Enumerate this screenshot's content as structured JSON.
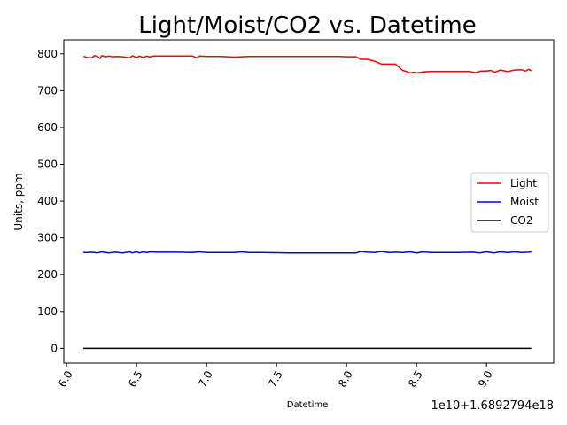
{
  "chart_data": {
    "type": "line",
    "title": "Light/Moist/CO2 vs. Datetime",
    "xlabel": "Datetime",
    "ylabel": "Units, ppm",
    "x_offset_label": "1e10+1.6892794e18",
    "xlim": [
      5.98,
      9.48
    ],
    "ylim": [
      -40,
      838
    ],
    "xticks": [
      6.0,
      6.5,
      7.0,
      7.5,
      8.0,
      8.5,
      9.0
    ],
    "xtick_labels": [
      "6.0",
      "6.5",
      "7.0",
      "7.5",
      "8.0",
      "8.5",
      "9.0"
    ],
    "yticks": [
      0,
      100,
      200,
      300,
      400,
      500,
      600,
      700,
      800
    ],
    "ytick_labels": [
      "0",
      "100",
      "200",
      "300",
      "400",
      "500",
      "600",
      "700",
      "800"
    ],
    "grid": false,
    "legend_position": "center-right",
    "series": [
      {
        "name": "Light",
        "color": "#ff0000",
        "x": [
          6.12,
          6.15,
          6.18,
          6.2,
          6.22,
          6.24,
          6.25,
          6.28,
          6.3,
          6.33,
          6.36,
          6.4,
          6.45,
          6.47,
          6.5,
          6.52,
          6.55,
          6.57,
          6.6,
          6.62,
          6.7,
          6.8,
          6.9,
          6.93,
          6.95,
          7.0,
          7.1,
          7.2,
          7.3,
          7.4,
          7.6,
          7.8,
          7.95,
          8.0,
          8.07,
          8.1,
          8.15,
          8.2,
          8.25,
          8.35,
          8.4,
          8.43,
          8.45,
          8.48,
          8.5,
          8.55,
          8.6,
          8.7,
          8.8,
          8.88,
          8.92,
          8.96,
          9.0,
          9.03,
          9.06,
          9.1,
          9.15,
          9.2,
          9.25,
          9.28,
          9.3,
          9.32
        ],
        "y": [
          793,
          790,
          789,
          795,
          793,
          787,
          795,
          792,
          794,
          792,
          793,
          792,
          789,
          795,
          790,
          794,
          790,
          794,
          791,
          794,
          794,
          794,
          794,
          789,
          794,
          793,
          793,
          791,
          793,
          793,
          793,
          793,
          793,
          792,
          792,
          785,
          785,
          780,
          772,
          772,
          755,
          752,
          748,
          750,
          748,
          751,
          752,
          752,
          752,
          752,
          749,
          753,
          753,
          755,
          750,
          756,
          752,
          756,
          757,
          753,
          758,
          754
        ]
      },
      {
        "name": "Moist",
        "color": "#0000ff",
        "x": [
          6.12,
          6.15,
          6.18,
          6.22,
          6.25,
          6.3,
          6.35,
          6.4,
          6.45,
          6.47,
          6.5,
          6.52,
          6.55,
          6.57,
          6.6,
          6.65,
          6.7,
          6.8,
          6.9,
          6.95,
          7.0,
          7.1,
          7.2,
          7.25,
          7.3,
          7.4,
          7.6,
          7.8,
          7.95,
          8.0,
          8.07,
          8.1,
          8.15,
          8.2,
          8.25,
          8.3,
          8.35,
          8.4,
          8.45,
          8.5,
          8.55,
          8.6,
          8.7,
          8.8,
          8.9,
          8.95,
          9.0,
          9.05,
          9.1,
          9.15,
          9.2,
          9.25,
          9.3,
          9.32
        ],
        "y": [
          260,
          260,
          261,
          259,
          262,
          259,
          261,
          259,
          262,
          259,
          262,
          259,
          262,
          260,
          262,
          261,
          261,
          261,
          260,
          262,
          260,
          260,
          260,
          262,
          260,
          260,
          259,
          259,
          259,
          259,
          259,
          263,
          261,
          260,
          263,
          260,
          261,
          260,
          262,
          259,
          262,
          260,
          260,
          260,
          261,
          259,
          262,
          259,
          262,
          260,
          262,
          260,
          261,
          262
        ]
      },
      {
        "name": "CO2",
        "color": "#000000",
        "x": [
          6.12,
          9.32
        ],
        "y": [
          0,
          0
        ]
      }
    ]
  }
}
